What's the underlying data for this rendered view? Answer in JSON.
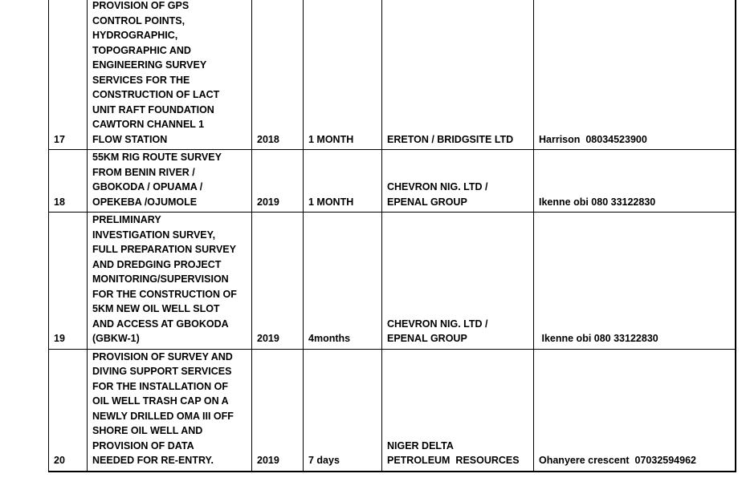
{
  "colors": {
    "background": "#ffffff",
    "text": "#000000",
    "border": "#000000"
  },
  "table": {
    "rows": [
      {
        "no": "17",
        "description": "PROVISION OF GPS\nCONTROL POINTS,\nHYDROGRAPHIC,\nTOPOGRAPHIC AND\nENGINEERING SURVEY\nSERVICES FOR THE\nCONSTRUCTION OF LACT\nUNIT RAFT FOUNDATION\nCAWTORN CHANNEL 1\nFLOW STATION",
        "year": "2018",
        "duration": "1 MONTH",
        "client": "ERETON / BRIDGSITE LTD",
        "contact": "Harrison  08034523900"
      },
      {
        "no": "18",
        "description": "55KM RIG ROUTE SURVEY\nFROM BENIN RIVER /\nGBOKODA / OPUAMA /\nOPEKEBA /OJUMOLE",
        "year": "2019",
        "duration": "1 MONTH",
        "client": "CHEVRON NIG. LTD /\nEPENAL GROUP",
        "contact": "Ikenne obi 080 33122830"
      },
      {
        "no": "19",
        "description": "PRELIMINARY\nINVESTIGATION SURVEY,\nFULL PREPARATION SURVEY\nAND DREDGING PROJECT\nMONITORING/SUPERVISION\nFOR THE CONSTRUCTION OF\n5KM NEW OIL WELL SLOT\nAND ACCESS AT GBOKODA\n(GBKW-1)",
        "year": "2019",
        "duration": "4months",
        "client": "CHEVRON NIG. LTD /\nEPENAL GROUP",
        "contact": " Ikenne obi 080 33122830"
      },
      {
        "no": "20",
        "description": "PROVISION OF SURVEY AND\nDIVING SUPPORT SERVICES\nFOR THE INSTALLATION OF\nOIL WELL TRASH CAP ON A\nNEWLY DRILLED OMA III OFF\nSHORE OIL WELL AND\nPROVISION OF DATA\nNEEDED FOR RE-ENTRY.",
        "year": "2019",
        "duration": "7 days",
        "client": "NIGER DELTA\nPETROLEUM  RESOURCES",
        "contact": "Ohanyere crescent  07032594962"
      }
    ]
  }
}
